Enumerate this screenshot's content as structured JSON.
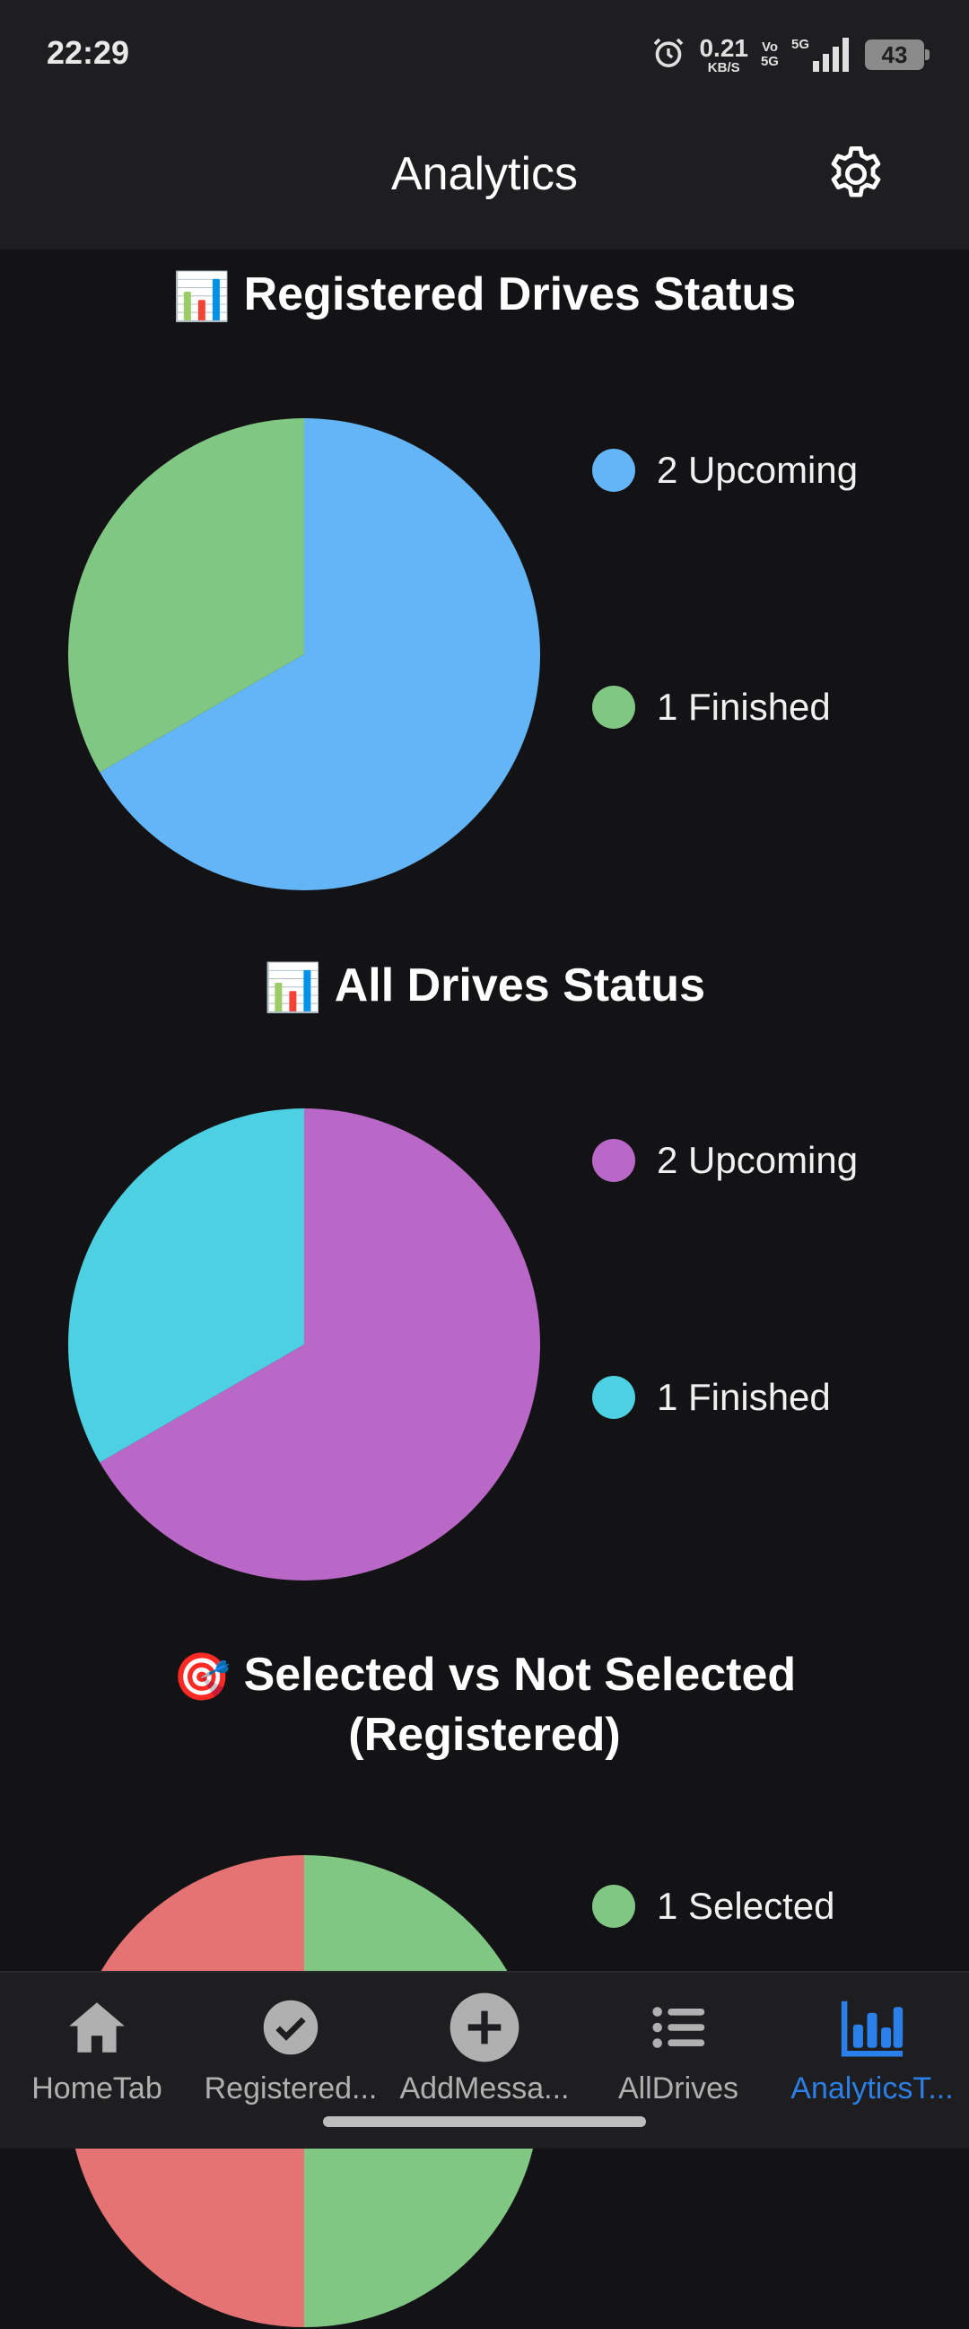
{
  "status_bar": {
    "time": "22:29",
    "net_speed_value": "0.21",
    "net_speed_unit": "KB/S",
    "volte_top": "Vo",
    "volte_bottom": "5G",
    "network": "5G",
    "battery": "43",
    "icons": [
      "alarm-icon",
      "signal-icon",
      "battery-icon"
    ]
  },
  "header": {
    "title": "Analytics",
    "settings_icon": "gear-icon"
  },
  "sections": [
    {
      "emoji": "📊",
      "title": "Registered Drives Status"
    },
    {
      "emoji": "📊",
      "title": "All Drives Status"
    },
    {
      "emoji": "🎯",
      "title_line1": "Selected vs Not Selected",
      "title_line2": "(Registered)"
    }
  ],
  "chart_data": [
    {
      "type": "pie",
      "title": "Registered Drives Status",
      "categories": [
        "Upcoming",
        "Finished"
      ],
      "values": [
        2,
        1
      ],
      "colors": [
        "#64b5f6",
        "#81c784"
      ],
      "legend": [
        "2 Upcoming",
        "1 Finished"
      ],
      "legend_position": "right"
    },
    {
      "type": "pie",
      "title": "All Drives Status",
      "categories": [
        "Upcoming",
        "Finished"
      ],
      "values": [
        2,
        1
      ],
      "colors": [
        "#ba68c8",
        "#4dd0e1"
      ],
      "legend": [
        "2 Upcoming",
        "1 Finished"
      ],
      "legend_position": "right"
    },
    {
      "type": "pie",
      "title": "Selected vs Not Selected (Registered)",
      "categories": [
        "Selected",
        "Not Selected"
      ],
      "values": [
        1,
        1
      ],
      "colors": [
        "#81c784",
        "#e57373"
      ],
      "legend": [
        "1 Selected"
      ],
      "legend_position": "right"
    }
  ],
  "bottom_nav": [
    {
      "label": "HomeTab",
      "icon": "home-icon",
      "active": false
    },
    {
      "label": "Registered...",
      "icon": "check-circle-icon",
      "active": false
    },
    {
      "label": "AddMessa...",
      "icon": "plus-circle-icon",
      "active": false
    },
    {
      "label": "AllDrives",
      "icon": "list-icon",
      "active": false
    },
    {
      "label": "AnalyticsT...",
      "icon": "bar-chart-icon",
      "active": true
    }
  ],
  "colors": {
    "background": "#131315",
    "bar_background": "#1e1e20",
    "accent": "#2b7fe8",
    "nav_inactive": "#b0b0b0"
  }
}
